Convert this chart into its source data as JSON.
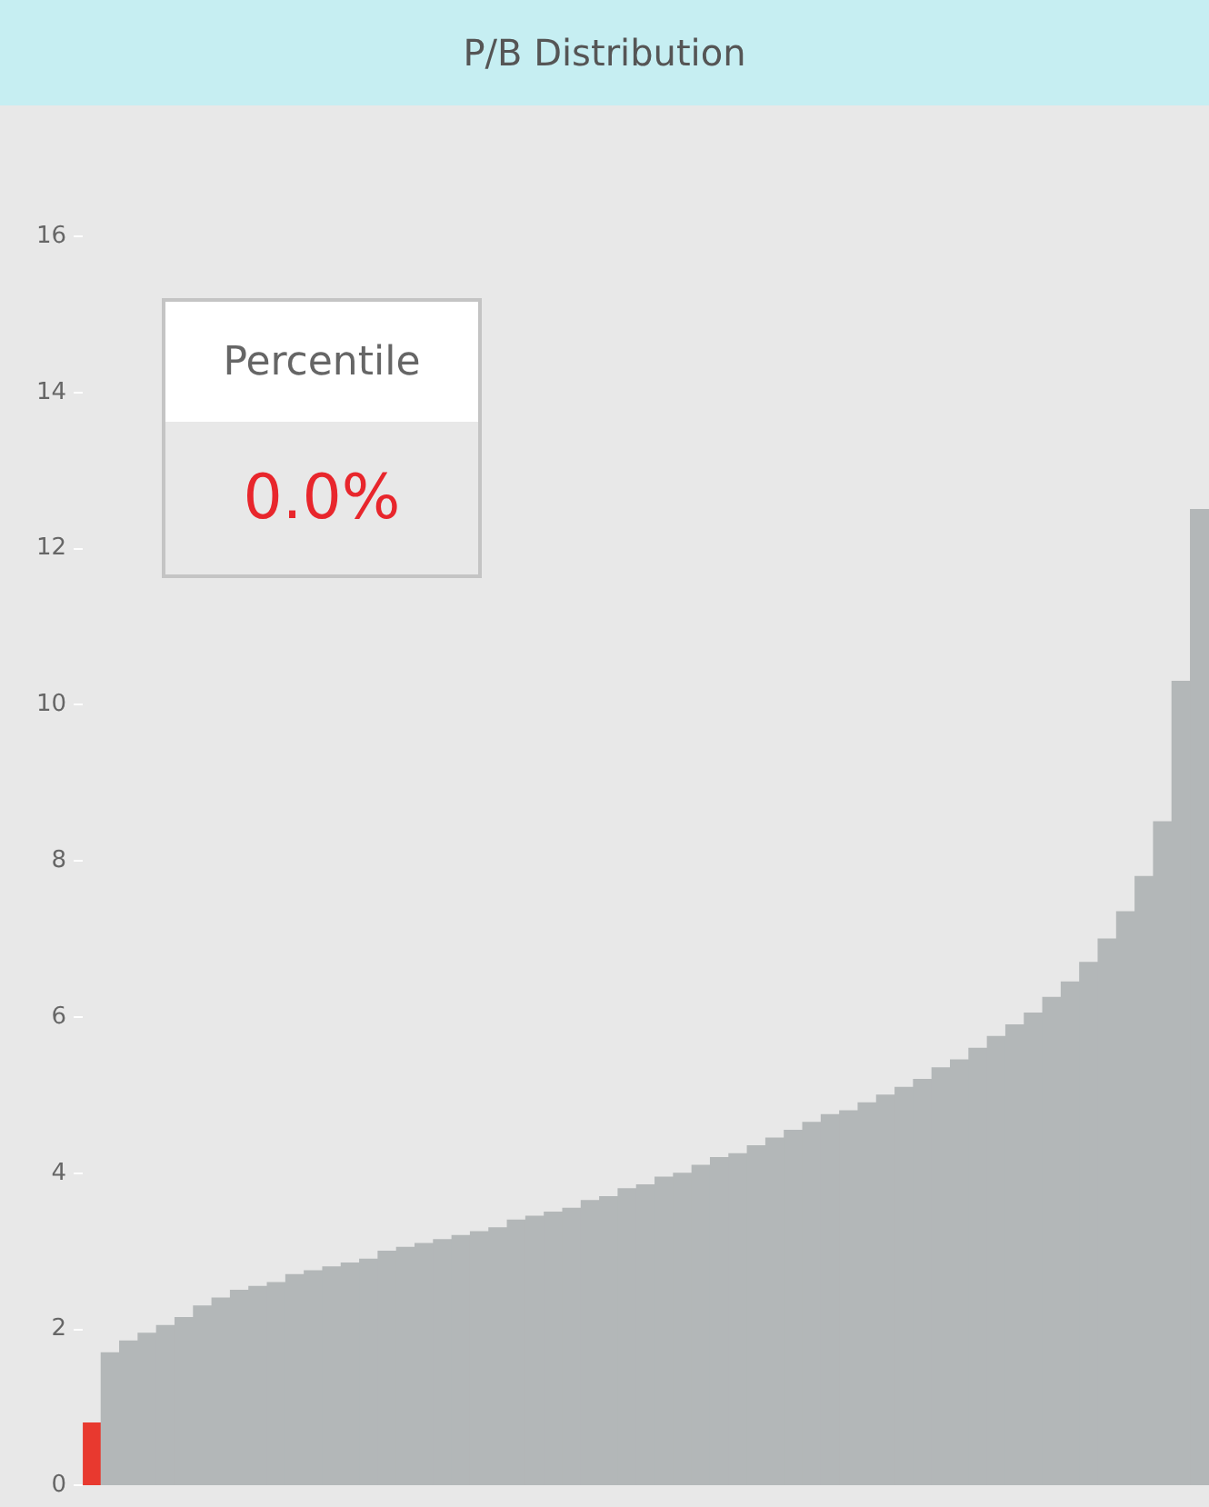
{
  "chart_data": {
    "type": "bar",
    "title": "P/B Distribution",
    "categories": [
      null,
      null,
      null,
      null,
      null,
      null,
      null,
      null,
      null,
      null,
      null,
      null,
      null,
      null,
      null,
      null,
      null,
      null,
      null,
      null,
      null,
      null,
      null,
      null,
      null,
      null,
      null,
      null,
      null,
      null,
      null,
      null,
      null,
      null,
      null,
      null,
      null,
      null,
      null,
      null,
      null,
      null,
      null,
      null,
      null,
      null,
      null,
      null,
      null,
      null,
      null,
      null,
      null,
      null,
      null,
      null,
      null,
      null,
      null,
      null,
      null
    ],
    "values": [
      0.8,
      1.7,
      1.85,
      1.95,
      2.05,
      2.15,
      2.3,
      2.4,
      2.5,
      2.55,
      2.6,
      2.7,
      2.75,
      2.8,
      2.85,
      2.9,
      3.0,
      3.05,
      3.1,
      3.15,
      3.2,
      3.25,
      3.3,
      3.4,
      3.45,
      3.5,
      3.55,
      3.65,
      3.7,
      3.8,
      3.85,
      3.95,
      4.0,
      4.1,
      4.2,
      4.25,
      4.35,
      4.45,
      4.55,
      4.65,
      4.75,
      4.8,
      4.9,
      5.0,
      5.1,
      5.2,
      5.35,
      5.45,
      5.6,
      5.75,
      5.9,
      6.05,
      6.25,
      6.45,
      6.7,
      7.0,
      7.35,
      7.8,
      8.5,
      10.3,
      12.5
    ],
    "colors": [
      "#e8392f",
      "#b3b7b8",
      "#b3b7b8",
      "#b3b7b8",
      "#b3b7b8",
      "#b3b7b8",
      "#b3b7b8",
      "#b3b7b8",
      "#b3b7b8",
      "#b3b7b8",
      "#b3b7b8",
      "#b3b7b8",
      "#b3b7b8",
      "#b3b7b8",
      "#b3b7b8",
      "#b3b7b8",
      "#b3b7b8",
      "#b3b7b8",
      "#b3b7b8",
      "#b3b7b8",
      "#b3b7b8",
      "#b3b7b8",
      "#b3b7b8",
      "#b3b7b8",
      "#b3b7b8",
      "#b3b7b8",
      "#b3b7b8",
      "#b3b7b8",
      "#b3b7b8",
      "#b3b7b8",
      "#b3b7b8",
      "#b3b7b8",
      "#b3b7b8",
      "#b3b7b8",
      "#b3b7b8",
      "#b3b7b8",
      "#b3b7b8",
      "#b3b7b8",
      "#b3b7b8",
      "#b3b7b8",
      "#b3b7b8",
      "#b3b7b8",
      "#b3b7b8",
      "#b3b7b8",
      "#b3b7b8",
      "#b3b7b8",
      "#b3b7b8",
      "#b3b7b8",
      "#b3b7b8",
      "#b3b7b8",
      "#b3b7b8",
      "#b3b7b8",
      "#b3b7b8",
      "#b3b7b8",
      "#b3b7b8",
      "#b3b7b8",
      "#b3b7b8",
      "#b3b7b8",
      "#b3b7b8",
      "#b3b7b8",
      "#b3b7b8"
    ],
    "ylim": [
      0,
      16
    ],
    "yticks": [
      0,
      2,
      4,
      6,
      8,
      10,
      12,
      14,
      16
    ],
    "tick_labels": "y",
    "annotations": [
      "Percentile",
      "0.0%"
    ]
  }
}
